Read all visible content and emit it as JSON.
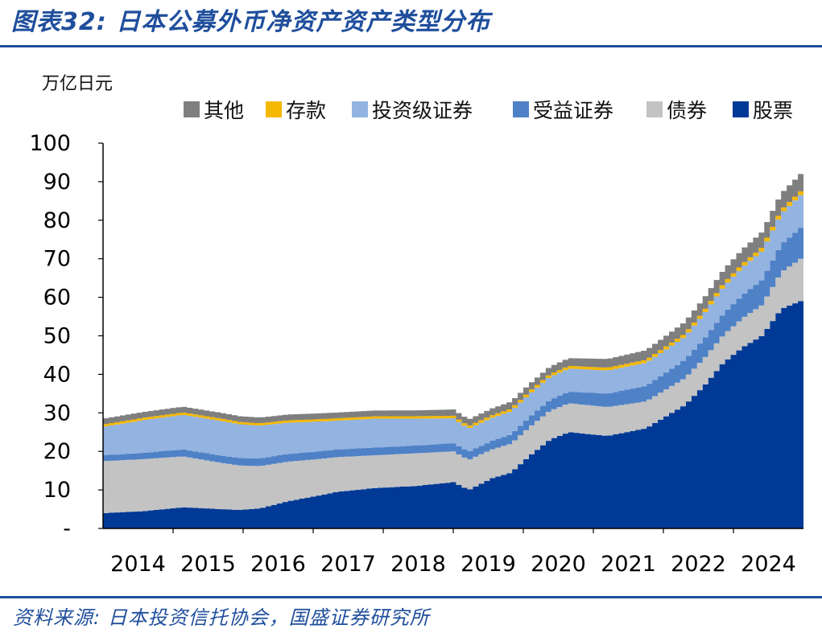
{
  "title": "图表32:  日本公募外币净资产资产类型分布",
  "source": "资料来源: 日本投资信托协会，国盛证券研究所",
  "chart_data": {
    "type": "area",
    "stacked": true,
    "unit_label": "万亿日元",
    "ylim": [
      0,
      100
    ],
    "yticks": [
      0,
      10,
      20,
      30,
      40,
      50,
      60,
      70,
      80,
      90,
      100
    ],
    "ytick_labels": [
      "-",
      "10",
      "20",
      "30",
      "40",
      "50",
      "60",
      "70",
      "80",
      "90",
      "100"
    ],
    "xtick_labels": [
      "2014",
      "2015",
      "2016",
      "2017",
      "2018",
      "2019",
      "2020",
      "2021",
      "2022",
      "2024"
    ],
    "legend_position": "top",
    "x_count": 125,
    "series": [
      {
        "name": "股票",
        "color": "#003a96",
        "anchors": [
          [
            0,
            4
          ],
          [
            10,
            4.5
          ],
          [
            20,
            5.5
          ],
          [
            30,
            5
          ],
          [
            35,
            4.8
          ],
          [
            40,
            5.2
          ],
          [
            47,
            7
          ],
          [
            55,
            8.5
          ],
          [
            60,
            9.5
          ],
          [
            70,
            10.5
          ],
          [
            80,
            11
          ],
          [
            90,
            12
          ],
          [
            94,
            10
          ],
          [
            100,
            13
          ],
          [
            105,
            14.5
          ],
          [
            110,
            19
          ],
          [
            115,
            23
          ],
          [
            120,
            25
          ],
          [
            125,
            24.5
          ],
          [
            130,
            24
          ],
          [
            135,
            25
          ],
          [
            140,
            26
          ],
          [
            145,
            29
          ],
          [
            150,
            32
          ],
          [
            155,
            37
          ],
          [
            160,
            43
          ],
          [
            165,
            47
          ],
          [
            170,
            50
          ],
          [
            175,
            57
          ],
          [
            180,
            59
          ]
        ]
      },
      {
        "name": "债券",
        "color": "#c3c3c3",
        "anchors": [
          [
            0,
            13.5
          ],
          [
            10,
            13.5
          ],
          [
            20,
            13.2
          ],
          [
            30,
            12
          ],
          [
            40,
            11
          ],
          [
            50,
            10
          ],
          [
            60,
            9
          ],
          [
            70,
            8.5
          ],
          [
            80,
            8.5
          ],
          [
            90,
            8
          ],
          [
            100,
            7.5
          ],
          [
            110,
            7.5
          ],
          [
            120,
            7.5
          ],
          [
            130,
            7.5
          ],
          [
            140,
            7
          ],
          [
            150,
            7
          ],
          [
            160,
            7.2
          ],
          [
            170,
            8
          ],
          [
            180,
            11
          ]
        ]
      },
      {
        "name": "受益证券",
        "color": "#4f81c7",
        "anchors": [
          [
            0,
            1.5
          ],
          [
            20,
            1.8
          ],
          [
            40,
            2
          ],
          [
            60,
            2
          ],
          [
            80,
            2
          ],
          [
            100,
            2.2
          ],
          [
            120,
            3
          ],
          [
            140,
            4
          ],
          [
            160,
            5.5
          ],
          [
            170,
            6.5
          ],
          [
            180,
            8
          ]
        ]
      },
      {
        "name": "投资级证券",
        "color": "#93b3e0",
        "anchors": [
          [
            0,
            7.5
          ],
          [
            10,
            8.5
          ],
          [
            20,
            9
          ],
          [
            30,
            9
          ],
          [
            40,
            8.5
          ],
          [
            50,
            8
          ],
          [
            60,
            7.5
          ],
          [
            70,
            7.5
          ],
          [
            80,
            7
          ],
          [
            90,
            6.5
          ],
          [
            94,
            6
          ],
          [
            100,
            6
          ],
          [
            110,
            6
          ],
          [
            120,
            6
          ],
          [
            130,
            6
          ],
          [
            140,
            6
          ],
          [
            150,
            6
          ],
          [
            160,
            7
          ],
          [
            170,
            7.5
          ],
          [
            180,
            8.5
          ]
        ]
      },
      {
        "name": "存款",
        "color": "#f5b800",
        "anchors": [
          [
            0,
            0.6
          ],
          [
            60,
            0.6
          ],
          [
            120,
            0.7
          ],
          [
            150,
            0.8
          ],
          [
            180,
            1.0
          ]
        ]
      },
      {
        "name": "其他",
        "color": "#7f7f7f",
        "anchors": [
          [
            0,
            1.5
          ],
          [
            40,
            1.5
          ],
          [
            80,
            1.5
          ],
          [
            120,
            2
          ],
          [
            140,
            2.5
          ],
          [
            150,
            3
          ],
          [
            160,
            3.5
          ],
          [
            170,
            4
          ],
          [
            180,
            4.5
          ]
        ]
      }
    ]
  }
}
